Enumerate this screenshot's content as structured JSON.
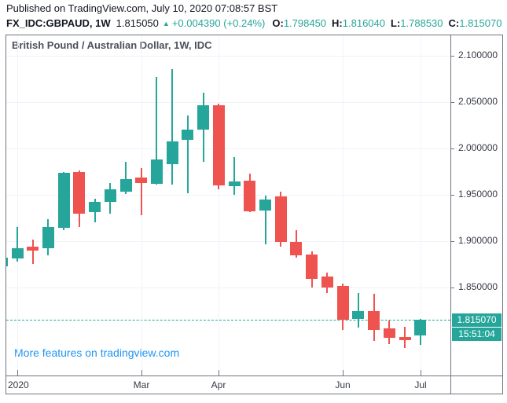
{
  "header": {
    "published_line": "Published on TradingView.com, July 10, 2020 07:08:57 BST",
    "symbol": "FX_IDC:GBPAUD, 1W",
    "last_price": "1.815050",
    "change_arrow": "▲",
    "change": "+0.004390 (+0.24%)",
    "ohlc": [
      {
        "label": "O:",
        "value": "1.798450"
      },
      {
        "label": "H:",
        "value": "1.816040"
      },
      {
        "label": "L:",
        "value": "1.788530"
      },
      {
        "label": "C:",
        "value": "1.815070"
      }
    ]
  },
  "chart": {
    "title": "British Pound / Australian Dollar, 1W, IDC",
    "watermark_link": "More features on tradingview.com",
    "price_label": "1.815070",
    "countdown_label": "15:51:04",
    "colors": {
      "up": "#26a69a",
      "down": "#ef5350",
      "badge": "#26a69a",
      "link_blue": "#2196f3",
      "grid": "#f0f3fa",
      "frame": "#70747f",
      "axis_text": "#363a45",
      "header_text": "#131722"
    }
  },
  "chart_data": {
    "type": "candlestick",
    "title": "British Pound / Australian Dollar, 1W, IDC",
    "symbol": "GBPAUD",
    "timeframe": "1W",
    "grid": "on",
    "ylim": [
      1.755,
      2.122
    ],
    "current_price": 1.81507,
    "y_ticks": [
      {
        "label": "2.100000",
        "value": 2.1
      },
      {
        "label": "2.050000",
        "value": 2.05
      },
      {
        "label": "2.000000",
        "value": 2.0
      },
      {
        "label": "1.950000",
        "value": 1.95
      },
      {
        "label": "1.900000",
        "value": 1.9
      },
      {
        "label": "1.850000",
        "value": 1.85
      }
    ],
    "x_ticks": [
      {
        "label": "2020",
        "index": 1,
        "align": "left"
      },
      {
        "label": "Mar",
        "index": 9
      },
      {
        "label": "Apr",
        "index": 14
      },
      {
        "label": "Jun",
        "index": 22
      },
      {
        "label": "Jul",
        "index": 27
      }
    ],
    "candles": [
      {
        "o": 1.873,
        "h": 1.882,
        "l": 1.872,
        "c": 1.882
      },
      {
        "o": 1.881,
        "h": 1.915,
        "l": 1.878,
        "c": 1.892
      },
      {
        "o": 1.894,
        "h": 1.902,
        "l": 1.875,
        "c": 1.89
      },
      {
        "o": 1.892,
        "h": 1.924,
        "l": 1.885,
        "c": 1.915
      },
      {
        "o": 1.914,
        "h": 1.975,
        "l": 1.912,
        "c": 1.974
      },
      {
        "o": 1.975,
        "h": 1.976,
        "l": 1.915,
        "c": 1.93
      },
      {
        "o": 1.931,
        "h": 1.946,
        "l": 1.92,
        "c": 1.942
      },
      {
        "o": 1.942,
        "h": 1.963,
        "l": 1.93,
        "c": 1.956
      },
      {
        "o": 1.953,
        "h": 1.986,
        "l": 1.951,
        "c": 1.967
      },
      {
        "o": 1.969,
        "h": 1.979,
        "l": 1.928,
        "c": 1.963
      },
      {
        "o": 1.962,
        "h": 2.077,
        "l": 1.961,
        "c": 1.988
      },
      {
        "o": 1.983,
        "h": 2.086,
        "l": 1.961,
        "c": 2.008
      },
      {
        "o": 2.009,
        "h": 2.036,
        "l": 1.952,
        "c": 2.02
      },
      {
        "o": 2.02,
        "h": 2.06,
        "l": 1.986,
        "c": 2.047
      },
      {
        "o": 2.047,
        "h": 2.048,
        "l": 1.956,
        "c": 1.96
      },
      {
        "o": 1.959,
        "h": 1.991,
        "l": 1.95,
        "c": 1.964
      },
      {
        "o": 1.965,
        "h": 1.973,
        "l": 1.931,
        "c": 1.932
      },
      {
        "o": 1.933,
        "h": 1.949,
        "l": 1.897,
        "c": 1.945
      },
      {
        "o": 1.948,
        "h": 1.953,
        "l": 1.894,
        "c": 1.899
      },
      {
        "o": 1.899,
        "h": 1.912,
        "l": 1.882,
        "c": 1.885
      },
      {
        "o": 1.886,
        "h": 1.889,
        "l": 1.85,
        "c": 1.859
      },
      {
        "o": 1.862,
        "h": 1.866,
        "l": 1.844,
        "c": 1.85
      },
      {
        "o": 1.852,
        "h": 1.854,
        "l": 1.804,
        "c": 1.815
      },
      {
        "o": 1.816,
        "h": 1.844,
        "l": 1.807,
        "c": 1.825
      },
      {
        "o": 1.825,
        "h": 1.843,
        "l": 1.792,
        "c": 1.804
      },
      {
        "o": 1.806,
        "h": 1.814,
        "l": 1.789,
        "c": 1.796
      },
      {
        "o": 1.797,
        "h": 1.808,
        "l": 1.785,
        "c": 1.793
      },
      {
        "o": 1.79845,
        "h": 1.81604,
        "l": 1.78853,
        "c": 1.81507
      }
    ]
  }
}
